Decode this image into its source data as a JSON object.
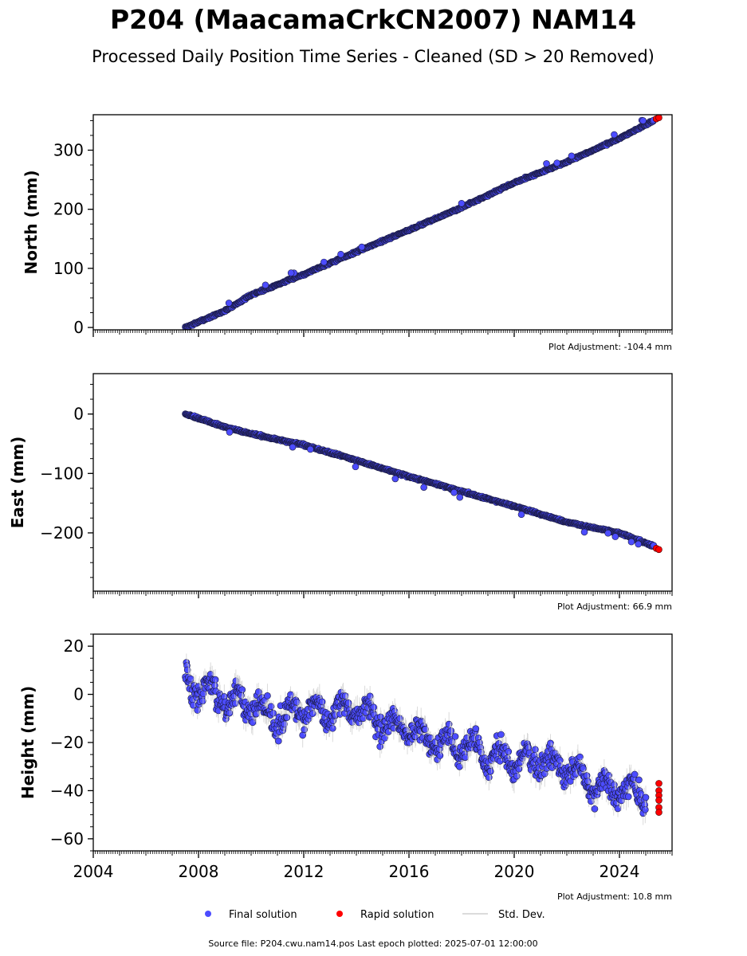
{
  "title": "P204 (MaacamaCrkCN2007) NAM14",
  "subtitle": "Processed Daily Position Time Series - Cleaned (SD > 20 Removed)",
  "source_text": "Source file: P204.cwu.nam14.pos  Last epoch plotted: 2025-07-01 12:00:00",
  "legend": [
    {
      "label": "Final solution",
      "color": "#4c4cff",
      "kind": "marker"
    },
    {
      "label": "Rapid solution",
      "color": "#ff0000",
      "kind": "marker"
    },
    {
      "label": "Std. Dev.",
      "color": "#d0d0d0",
      "kind": "line"
    }
  ],
  "chart_data": [
    {
      "type": "scatter",
      "ylabel": "North (mm)",
      "plot_adjustment": "Plot Adjustment: -104.4 mm",
      "xlim": [
        2004,
        2026
      ],
      "ylim": [
        -4,
        360
      ],
      "yticks": [
        0,
        100,
        200,
        300
      ],
      "ytick_labels": [
        "0",
        "100",
        "200",
        "300"
      ],
      "xticks": [
        2004,
        2008,
        2012,
        2016,
        2020,
        2024
      ],
      "xtick_labels": [],
      "series": [
        {
          "name": "Final solution",
          "x": [
            2007.5,
            2009,
            2010,
            2012,
            2014,
            2016,
            2018,
            2020,
            2022,
            2024,
            2025.3
          ],
          "y": [
            0,
            28,
            55,
            90,
            128,
            165,
            203,
            245,
            280,
            320,
            350
          ]
        },
        {
          "name": "Rapid solution",
          "x": [
            2025.4,
            2025.5
          ],
          "y": [
            353,
            355
          ]
        }
      ]
    },
    {
      "type": "scatter",
      "ylabel": "East (mm)",
      "plot_adjustment": "Plot Adjustment: 66.9 mm",
      "xlim": [
        2004,
        2026
      ],
      "ylim": [
        -298,
        68
      ],
      "yticks": [
        -200,
        -100,
        0
      ],
      "ytick_labels": [
        "−200",
        "−100",
        "0"
      ],
      "xticks": [
        2004,
        2008,
        2012,
        2016,
        2020,
        2024
      ],
      "xtick_labels": [],
      "series": [
        {
          "name": "Final solution",
          "x": [
            2007.5,
            2009,
            2010,
            2012,
            2014,
            2016,
            2018,
            2020,
            2022,
            2024,
            2025.3
          ],
          "y": [
            0,
            -22,
            -33,
            -52,
            -78,
            -105,
            -130,
            -155,
            -182,
            -200,
            -222
          ]
        },
        {
          "name": "Rapid solution",
          "x": [
            2025.4,
            2025.5
          ],
          "y": [
            -226,
            -228
          ]
        }
      ]
    },
    {
      "type": "scatter",
      "ylabel": "Height (mm)",
      "plot_adjustment": "Plot Adjustment: 10.8 mm",
      "xlim": [
        2004,
        2026
      ],
      "ylim": [
        -65,
        25
      ],
      "yticks": [
        -60,
        -40,
        -20,
        0,
        20
      ],
      "ytick_labels": [
        "−60",
        "−40",
        "−20",
        "0",
        "20"
      ],
      "xticks": [
        2004,
        2008,
        2012,
        2016,
        2020,
        2024
      ],
      "xtick_labels": [
        "2004",
        "2008",
        "2012",
        "2016",
        "2020",
        "2024"
      ],
      "series": [
        {
          "name": "Final solution",
          "x": [
            2007.5,
            2008,
            2009,
            2010,
            2011,
            2012,
            2013,
            2014,
            2015,
            2016,
            2017,
            2018,
            2019,
            2020,
            2021,
            2022,
            2023,
            2024,
            2025
          ],
          "y": [
            5,
            3,
            -2,
            -5,
            -10,
            -6,
            -8,
            -4,
            -12,
            -15,
            -20,
            -22,
            -25,
            -28,
            -27,
            -30,
            -38,
            -40,
            -42
          ]
        },
        {
          "name": "Rapid solution",
          "x": [
            2025.5,
            2025.5,
            2025.5,
            2025.5,
            2025.5,
            2025.5
          ],
          "y": [
            -37,
            -40,
            -42,
            -44,
            -47,
            -49
          ]
        }
      ]
    }
  ]
}
